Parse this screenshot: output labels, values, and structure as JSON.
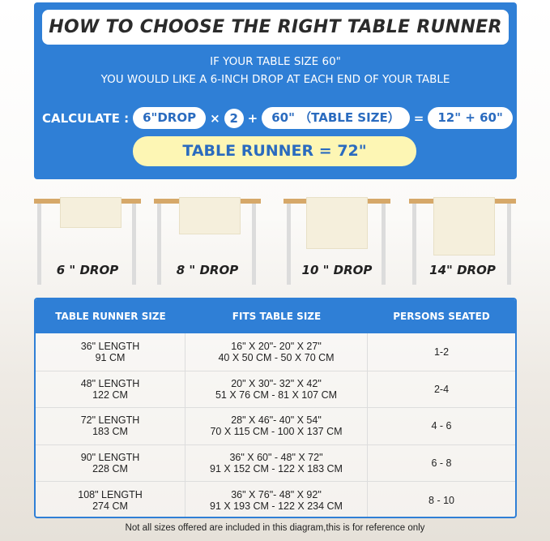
{
  "title": "HOW TO CHOOSE THE RIGHT TABLE RUNNER",
  "intro": {
    "line1": "IF YOUR TABLE SIZE 60\"",
    "line2": "YOU WOULD LIKE A 6-INCH DROP AT EACH END OF YOUR TABLE"
  },
  "calc": {
    "label": "CALCULATE :",
    "drop": "6\"DROP",
    "times": "×",
    "mult": "2",
    "plus": "+",
    "table": "60\" （TABLE SIZE）",
    "equals": "=",
    "sum": "12\" + 60\"",
    "result": "TABLE RUNNER = 72\""
  },
  "drops": [
    "6 \" DROP",
    "8 \" DROP",
    "10 \" DROP",
    "14\" DROP"
  ],
  "table": {
    "headers": [
      "TABLE RUNNER SIZE",
      "FITS TABLE SIZE",
      "PERSONS SEATED"
    ],
    "rows": [
      {
        "len": "36\" LENGTH",
        "cm": "91 CM",
        "fit_in": "16\" X 20\"- 20\" X 27\"",
        "fit_cm": "40 X 50 CM - 50 X 70 CM",
        "persons": "1-2"
      },
      {
        "len": "48\" LENGTH",
        "cm": "122 CM",
        "fit_in": "20\" X 30\"- 32\" X 42\"",
        "fit_cm": "51 X 76 CM - 81 X 107 CM",
        "persons": "2-4"
      },
      {
        "len": "72\" LENGTH",
        "cm": "183 CM",
        "fit_in": "28\" X 46\"- 40\" X 54\"",
        "fit_cm": "70 X 115 CM - 100 X 137 CM",
        "persons": "4 - 6"
      },
      {
        "len": "90\" LENGTH",
        "cm": "228 CM",
        "fit_in": "36\" X 60\" - 48\" X 72\"",
        "fit_cm": "91 X 152 CM - 122 X 183 CM",
        "persons": "6 - 8"
      },
      {
        "len": "108\" LENGTH",
        "cm": "274 CM",
        "fit_in": "36\" X 76\"- 48\" X 92\"",
        "fit_cm": "91 X 193 CM - 122 X 234 CM",
        "persons": "8 - 10"
      }
    ]
  },
  "note": "Not all sizes offered are included in this diagram,this is for reference only"
}
